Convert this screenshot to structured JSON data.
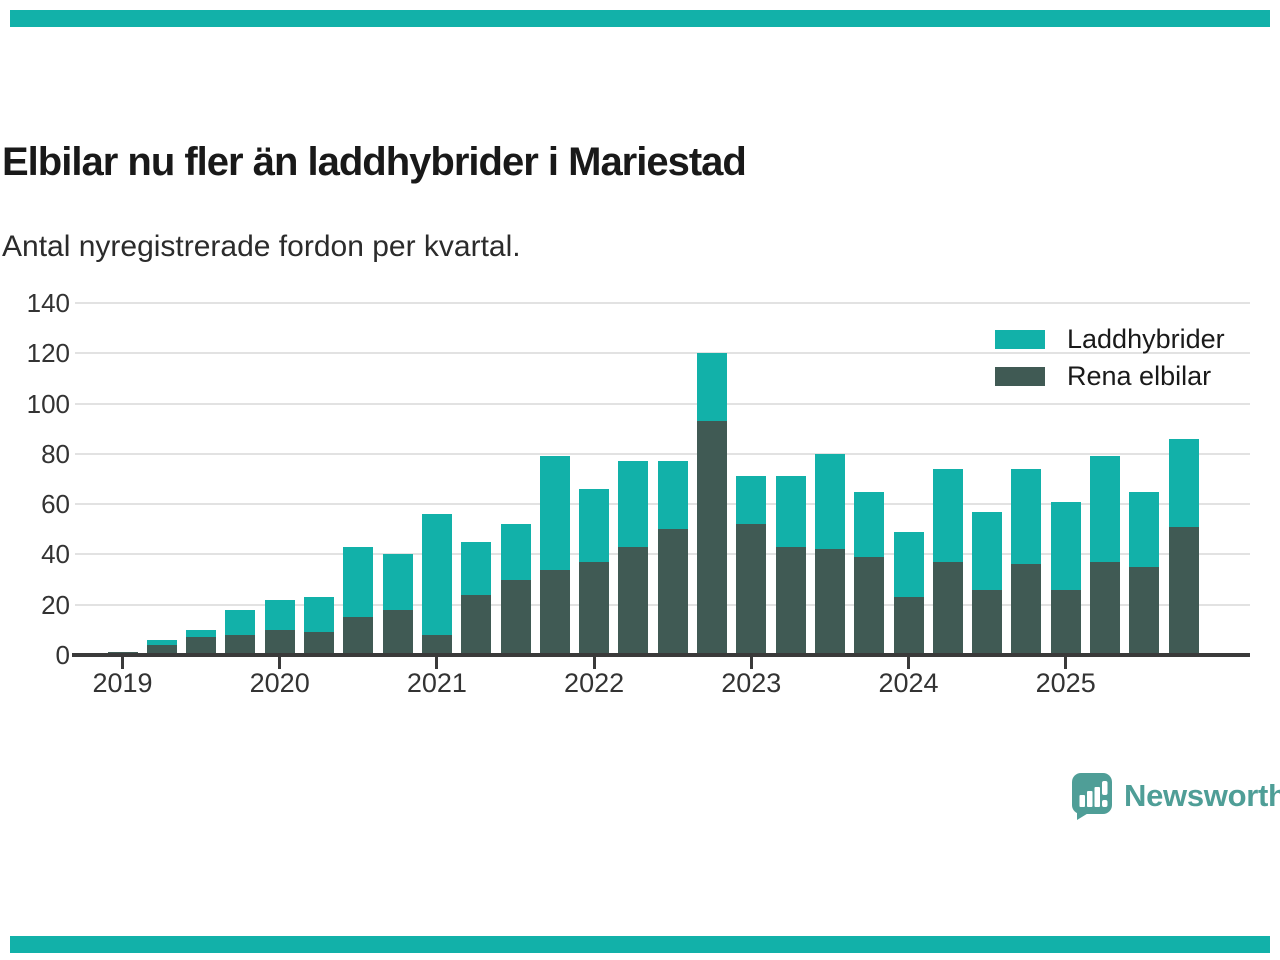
{
  "page": {
    "title": "Elbilar nu fler än laddhybrider i Mariestad",
    "subtitle": "Antal nyregistrerade fordon per kvartal."
  },
  "branding": {
    "accent_bar_color": "#12b1a9",
    "logo_text": "Newsworthy",
    "logo_color": "#4f9e97"
  },
  "chart_data": {
    "type": "bar",
    "stacked": true,
    "title": "Elbilar nu fler än laddhybrider i Mariestad",
    "subtitle": "Antal nyregistrerade fordon per kvartal.",
    "categories": [
      "2019 Q1",
      "2019 Q2",
      "2019 Q3",
      "2019 Q4",
      "2020 Q1",
      "2020 Q2",
      "2020 Q3",
      "2020 Q4",
      "2021 Q1",
      "2021 Q2",
      "2021 Q3",
      "2021 Q4",
      "2022 Q1",
      "2022 Q2",
      "2022 Q3",
      "2022 Q4",
      "2023 Q1",
      "2023 Q2",
      "2023 Q3",
      "2023 Q4",
      "2024 Q1",
      "2024 Q2",
      "2024 Q3",
      "2024 Q4",
      "2025 Q1",
      "2025 Q2",
      "2025 Q3",
      "2025 Q4"
    ],
    "series": [
      {
        "name": "Rena elbilar",
        "color": "#405a54",
        "values": [
          1,
          4,
          7,
          8,
          10,
          9,
          15,
          18,
          8,
          24,
          30,
          34,
          37,
          43,
          50,
          93,
          52,
          43,
          42,
          39,
          23,
          37,
          26,
          36,
          26,
          37,
          35,
          51
        ]
      },
      {
        "name": "Laddhybrider",
        "color": "#12b1a9",
        "values": [
          0,
          2,
          3,
          10,
          12,
          14,
          28,
          22,
          48,
          21,
          22,
          45,
          29,
          34,
          27,
          27,
          19,
          28,
          38,
          26,
          26,
          37,
          31,
          38,
          35,
          42,
          30,
          35
        ]
      }
    ],
    "totals": [
      1,
      6,
      10,
      18,
      22,
      23,
      43,
      40,
      56,
      45,
      52,
      79,
      66,
      77,
      77,
      120,
      71,
      71,
      80,
      65,
      49,
      74,
      57,
      74,
      61,
      79,
      65,
      86
    ],
    "legend_position": "top-right",
    "legend_order": [
      "Laddhybrider",
      "Rena elbilar"
    ],
    "grid": true,
    "ylim": [
      0,
      140
    ],
    "yticks": [
      0,
      20,
      40,
      60,
      80,
      100,
      120,
      140
    ],
    "xtick_labels": [
      "2019",
      "2020",
      "2021",
      "2022",
      "2023",
      "2024",
      "2025"
    ]
  }
}
